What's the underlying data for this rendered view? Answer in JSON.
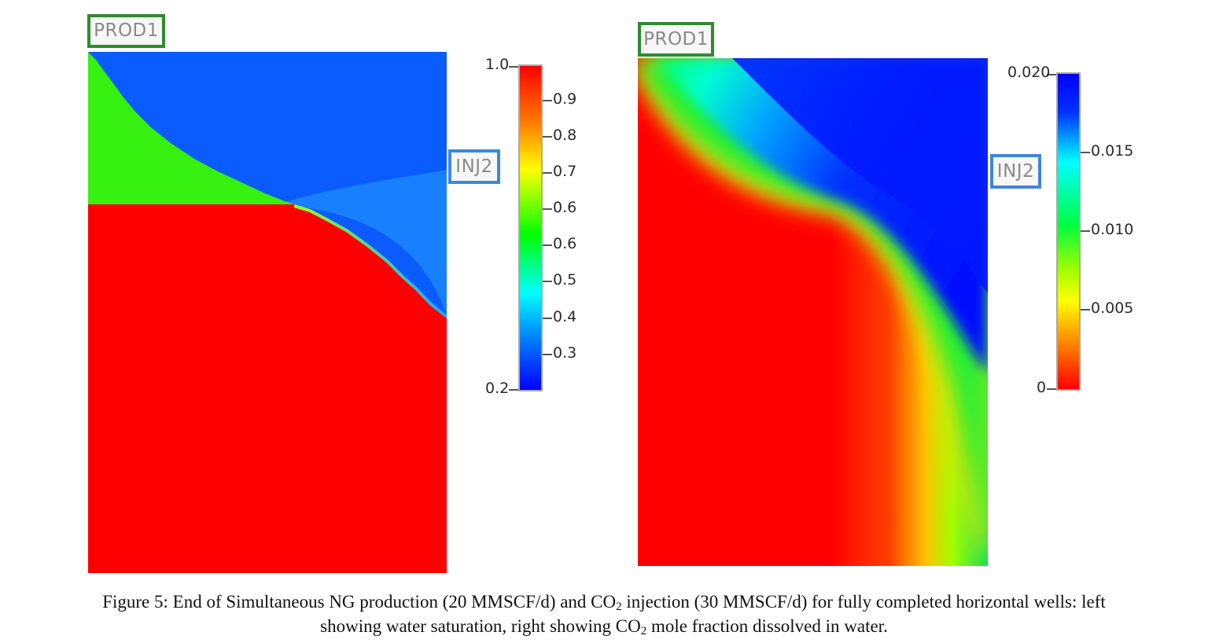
{
  "figure": {
    "left_panel": {
      "well_prod": "PROD1",
      "well_inj": "INJ2",
      "colorbar": {
        "min_label": "0.2",
        "max_label": "1.0",
        "ticks": [
          "0.9",
          "0.8",
          "0.7",
          "0.6",
          "0.6",
          "0.5",
          "0.4",
          "0.3"
        ],
        "gradient": [
          "#ff0000",
          "#ff8000",
          "#ffff00",
          "#00ff00",
          "#00ffff",
          "#0080ff",
          "#0000ff"
        ]
      },
      "field_colors": {
        "blue": "#0a5cff",
        "green": "#36f010",
        "red": "#ff0000",
        "light_blue": "#1aa8ff"
      }
    },
    "right_panel": {
      "well_prod": "PROD1",
      "well_inj": "INJ2",
      "colorbar": {
        "min_label": "0",
        "max_label": "0.020",
        "ticks": [
          "0.015",
          "0.010",
          "0.005"
        ],
        "gradient": [
          "#0000ff",
          "#00ffff",
          "#00ff00",
          "#ffff00",
          "#ff0000"
        ]
      }
    },
    "caption": {
      "line1_a": "Figure 5: End of Simultaneous NG production (20 MMSCF/d) and CO",
      "line1_sub": "2",
      "line1_b": " injection (30 MMSCF/d) for fully completed horizontal wells: left",
      "line2_a": "showing water saturation, right showing CO",
      "line2_sub": "2",
      "line2_b": " mole fraction dissolved in water."
    }
  }
}
